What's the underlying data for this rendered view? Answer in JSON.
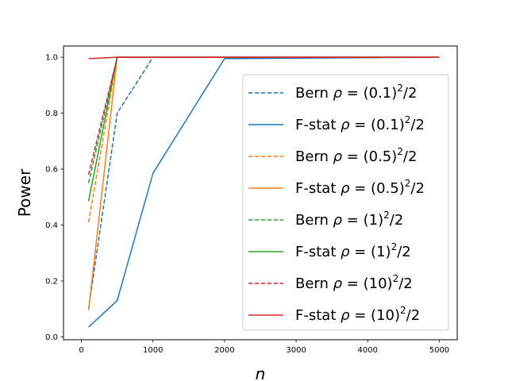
{
  "chart_data": {
    "type": "line",
    "title": "",
    "xlabel": "n",
    "ylabel": "Power",
    "xlim": [
      -250,
      5250
    ],
    "ylim": [
      -0.01,
      1.04
    ],
    "xticks": [
      0,
      1000,
      2000,
      3000,
      4000,
      5000
    ],
    "yticks": [
      0.0,
      0.2,
      0.4,
      0.6,
      0.8,
      1.0
    ],
    "xtick_labels": [
      "0",
      "1000",
      "2000",
      "3000",
      "4000",
      "5000"
    ],
    "ytick_labels": [
      "0.0",
      "0.2",
      "0.4",
      "0.6",
      "0.8",
      "1.0"
    ],
    "grid": false,
    "legend_position": "center-right",
    "x": [
      100,
      500,
      1000,
      2000,
      5000
    ],
    "series": [
      {
        "name": "Bern",
        "rho_label": "(0.1)",
        "style": "dashed",
        "color": "#1f77b4",
        "values": [
          0.1,
          0.8,
          1.0,
          1.0,
          1.0
        ]
      },
      {
        "name": "F-stat",
        "rho_label": "(0.1)",
        "style": "solid",
        "color": "#1f77b4",
        "values": [
          0.035,
          0.13,
          0.585,
          0.995,
          1.0
        ]
      },
      {
        "name": "Bern",
        "rho_label": "(0.5)",
        "style": "dashed",
        "color": "#ff7f0e",
        "values": [
          0.41,
          1.0,
          1.0,
          1.0,
          1.0
        ]
      },
      {
        "name": "F-stat",
        "rho_label": "(0.5)",
        "style": "solid",
        "color": "#ff7f0e",
        "values": [
          0.095,
          1.0,
          1.0,
          1.0,
          1.0
        ]
      },
      {
        "name": "Bern",
        "rho_label": "(1)",
        "style": "dashed",
        "color": "#2ca02c",
        "values": [
          0.55,
          1.0,
          1.0,
          1.0,
          1.0
        ]
      },
      {
        "name": "F-stat",
        "rho_label": "(1)",
        "style": "solid",
        "color": "#2ca02c",
        "values": [
          0.485,
          1.0,
          1.0,
          1.0,
          1.0
        ]
      },
      {
        "name": "Bern",
        "rho_label": "(10)",
        "style": "dashed",
        "color": "#d62728",
        "values": [
          0.58,
          1.0,
          1.0,
          1.0,
          1.0
        ]
      },
      {
        "name": "F-stat",
        "rho_label": "(10)",
        "style": "solid",
        "color": "#d62728",
        "values": [
          0.995,
          1.0,
          1.0,
          1.0,
          1.0
        ]
      }
    ]
  }
}
